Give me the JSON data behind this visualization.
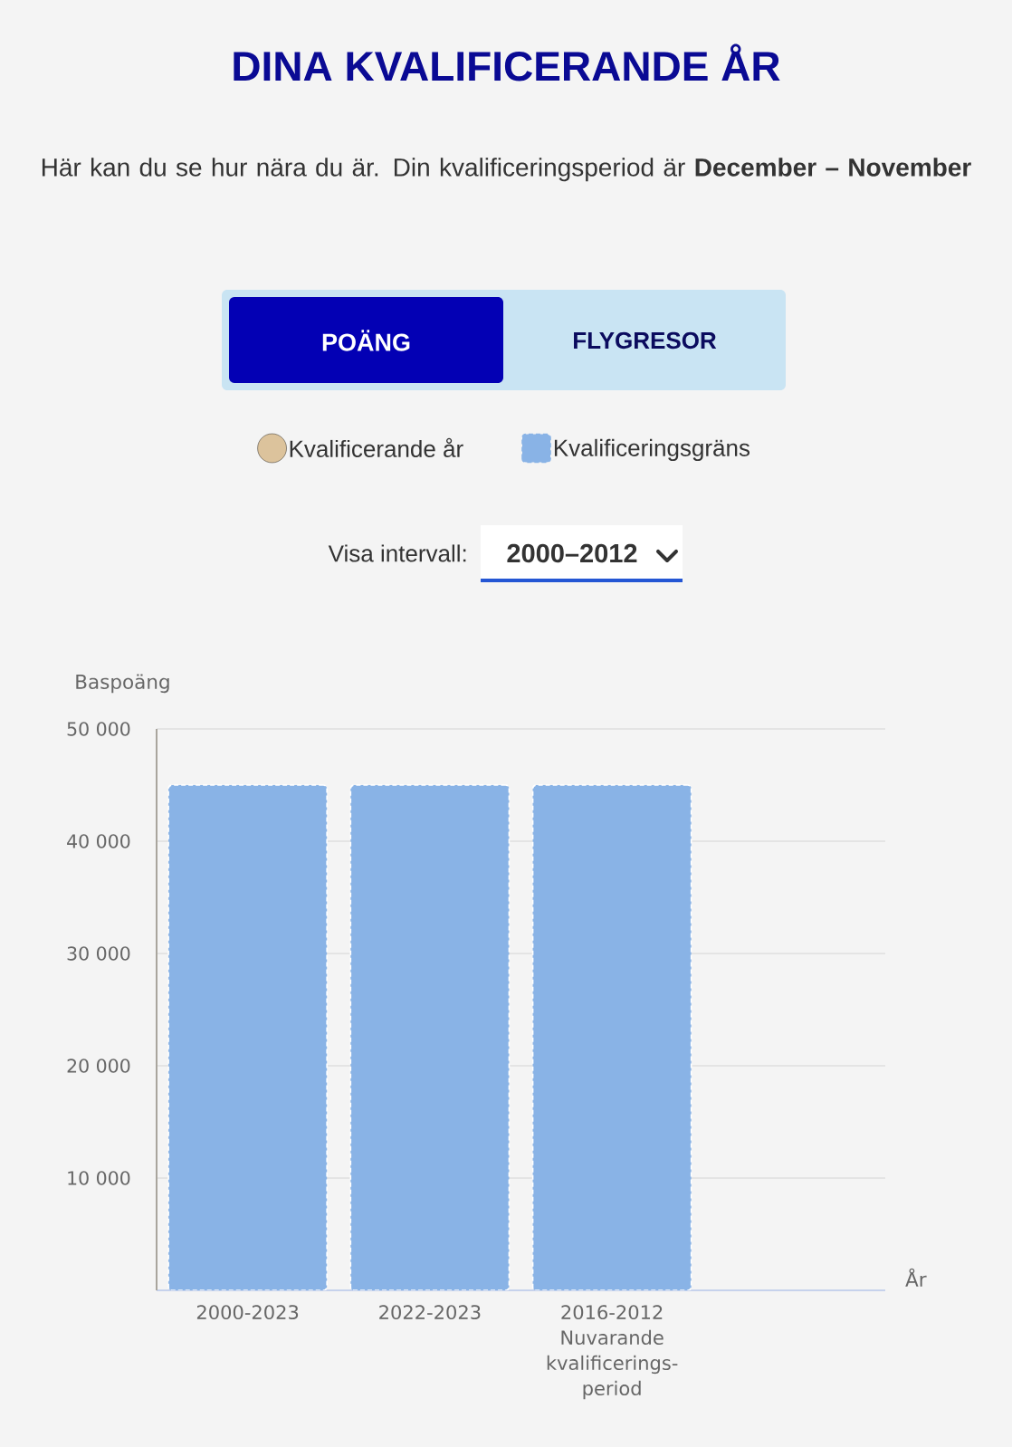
{
  "chart_data": {
    "type": "bar",
    "title": "DINA KVALIFICERANDE ÅR",
    "subtitle": "Här kan du se hur nära du är. Din kvalificeringsperiod är **December – November**",
    "annotations": [
      "POÄNG",
      "FLYGRESOR",
      "Visa intervall:",
      "2000–2012"
    ],
    "xlabel": "År",
    "ylabel": "Baspoäng",
    "categories": [
      "2000-2023",
      "2022-2023",
      "2016-2012 Nuvarande kvalificerings-period",
      null
    ],
    "series": [
      {
        "name": "Kvalificerande år",
        "type": "scatter",
        "marker": "circle",
        "color": "#dcc39c",
        "values": [
          null,
          null,
          null,
          null
        ]
      },
      {
        "name": "Kvalificeringsgräns",
        "color": "#89b3e6",
        "values": [
          45000,
          45000,
          45000,
          null
        ]
      }
    ],
    "ylim": [
      0,
      50000
    ],
    "yticks": [
      {
        "value": 10000,
        "label": "10 000"
      },
      {
        "value": 20000,
        "label": "20 000"
      },
      {
        "value": 30000,
        "label": "30 000"
      },
      {
        "value": 40000,
        "label": "40 000"
      },
      {
        "value": 50000,
        "label": "50 000"
      }
    ],
    "grid": "y",
    "legend": "top"
  }
}
